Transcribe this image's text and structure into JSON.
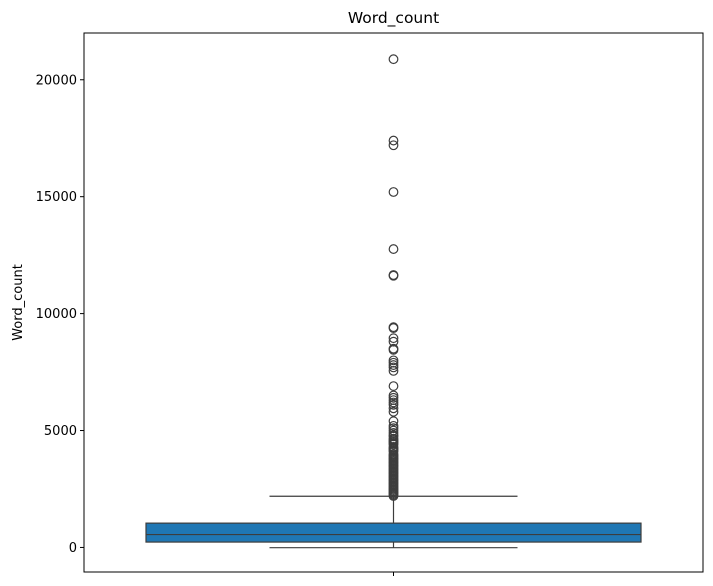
{
  "chart_data": {
    "type": "box",
    "title": "Word_count",
    "xlabel": "",
    "ylabel": "Word_count",
    "ylim": [
      -1050,
      22000
    ],
    "yticks": [
      0,
      5000,
      10000,
      15000,
      20000
    ],
    "grid": false,
    "legend": "none",
    "box": {
      "q1": 230,
      "median": 550,
      "q3": 1040,
      "whisker_low": -10,
      "whisker_high": 2190,
      "fill_color": "#1f77b4"
    },
    "outliers": [
      20880,
      17400,
      17200,
      15200,
      12760,
      11650,
      11620,
      9420,
      9380,
      8950,
      8800,
      8500,
      8450,
      8000,
      7900,
      7800,
      7700,
      7550,
      6900,
      6500,
      6400,
      6300,
      6200,
      6100,
      5950,
      5800,
      5400,
      5200,
      5100,
      5000,
      4900,
      4800,
      4750,
      4650,
      4600,
      4550,
      4500,
      4450,
      4400,
      4300,
      4250,
      4200,
      4150,
      4100,
      4000,
      3950,
      3900,
      3850,
      3800,
      3750,
      3700,
      3650,
      3600,
      3550,
      3500,
      3450,
      3400,
      3350,
      3300,
      3250,
      3200,
      3150,
      3100,
      3050,
      3000,
      2950,
      2900,
      2850,
      2800,
      2750,
      2700,
      2650,
      2600,
      2550,
      2500,
      2450,
      2400,
      2350,
      2300,
      2250,
      2200
    ]
  }
}
